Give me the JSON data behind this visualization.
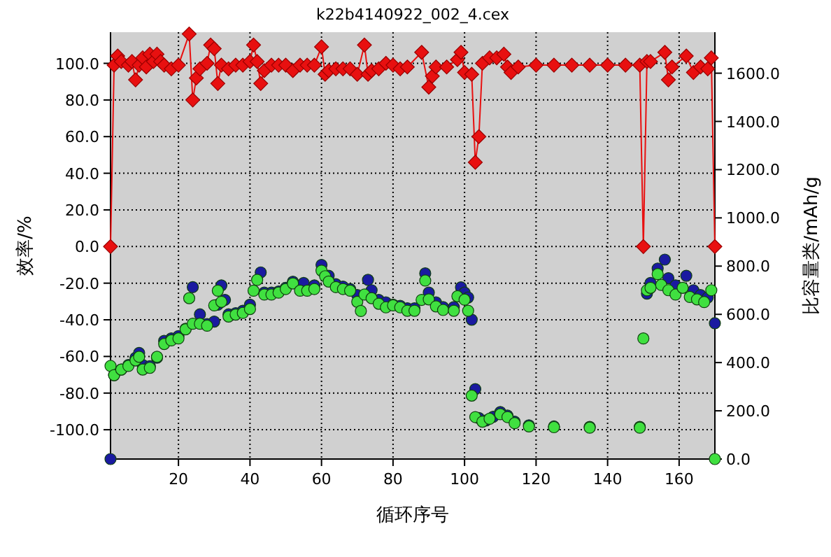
{
  "chart_data": {
    "type": "scatter",
    "title": "k22b4140922_002_4.cex",
    "xlabel": "循环序号",
    "ylabel": "效率/%",
    "y2label": "比容量类/mAh/g",
    "xlim": [
      1,
      170
    ],
    "xticks": [
      20,
      40,
      60,
      80,
      100,
      120,
      140,
      160
    ],
    "ylim": [
      -116,
      117
    ],
    "yticks": [
      {
        "value": -100,
        "label": "-100.0"
      },
      {
        "value": -80,
        "label": "-80.0"
      },
      {
        "value": -60,
        "label": "-60.0"
      },
      {
        "value": -40,
        "label": "-40.0"
      },
      {
        "value": -20,
        "label": "-20.0"
      },
      {
        "value": 0,
        "label": "0.0"
      },
      {
        "value": 20,
        "label": "20.0"
      },
      {
        "value": 40,
        "label": "40.0"
      },
      {
        "value": 60,
        "label": "60.0"
      },
      {
        "value": 80,
        "label": "80.0"
      },
      {
        "value": 100,
        "label": "100.0"
      }
    ],
    "y2lim": [
      0,
      1770
    ],
    "y2ticks": [
      {
        "value": 0,
        "label": "0.0"
      },
      {
        "value": 200,
        "label": "200.0"
      },
      {
        "value": 400,
        "label": "400.0"
      },
      {
        "value": 600,
        "label": "600.0"
      },
      {
        "value": 800,
        "label": "800.0"
      },
      {
        "value": 1000,
        "label": "1000.0"
      },
      {
        "value": 1200,
        "label": "1200.0"
      },
      {
        "value": 1400,
        "label": "1400.0"
      },
      {
        "value": 1600,
        "label": "1600.0"
      }
    ],
    "grid": true,
    "series": [
      {
        "type": "line",
        "marker": "diamond",
        "axis": "y",
        "color": "#e81010",
        "x": [
          1,
          2,
          3,
          4,
          6,
          7,
          8,
          9,
          10,
          11,
          12,
          13,
          14,
          15,
          16,
          18,
          20,
          23,
          24,
          25,
          26,
          28,
          29,
          30,
          31,
          32,
          34,
          36,
          38,
          40,
          41,
          42,
          43,
          44,
          46,
          48,
          50,
          52,
          54,
          56,
          58,
          60,
          61,
          62,
          64,
          66,
          68,
          70,
          72,
          73,
          74,
          76,
          78,
          80,
          82,
          84,
          88,
          90,
          91,
          92,
          95,
          98,
          99,
          100,
          102,
          103,
          104,
          105,
          107,
          109,
          111,
          112,
          113,
          115,
          120,
          125,
          130,
          135,
          140,
          145,
          149,
          150,
          151,
          152,
          156,
          157,
          158,
          162,
          164,
          166,
          168,
          169,
          170
        ],
        "values": [
          0,
          99,
          104,
          101,
          99,
          101,
          91,
          99,
          103,
          98,
          105,
          101,
          105,
          101,
          99,
          97,
          99,
          116,
          80,
          92,
          97,
          100,
          110,
          108,
          89,
          99,
          97,
          99,
          99,
          101,
          110,
          101,
          89,
          96,
          99,
          99,
          99,
          96,
          99,
          99,
          99,
          109,
          94,
          96,
          97,
          97,
          97,
          94,
          110,
          94,
          96,
          97,
          100,
          99,
          97,
          98,
          106,
          87,
          93,
          98,
          98,
          102,
          106,
          95,
          94,
          46,
          60,
          100,
          103,
          103,
          105,
          98,
          95,
          98,
          99,
          99,
          99,
          99,
          99,
          99,
          99,
          0,
          101,
          101,
          106,
          91,
          98,
          104,
          95,
          98,
          97,
          103,
          0
        ]
      },
      {
        "axis": "y2",
        "marker": "circle",
        "color": "#1a1aa0",
        "x": [
          1,
          2,
          4,
          6,
          8,
          9,
          10,
          12,
          14,
          16,
          18,
          20,
          22,
          24,
          26,
          28,
          30,
          31,
          32,
          33,
          34,
          36,
          38,
          40,
          43,
          44,
          46,
          48,
          50,
          52,
          55,
          58,
          60,
          62,
          64,
          66,
          68,
          70,
          73,
          74,
          76,
          78,
          80,
          82,
          84,
          86,
          89,
          90,
          92,
          94,
          97,
          99,
          100,
          101,
          102,
          103,
          104,
          106,
          108,
          110,
          112,
          114,
          118,
          125,
          135,
          149,
          151,
          152,
          154,
          156,
          157,
          159,
          162,
          164,
          166,
          168,
          170
        ],
        "values": [
          0,
          348,
          371,
          390,
          420,
          440,
          390,
          385,
          420,
          490,
          500,
          510,
          540,
          713,
          600,
          560,
          570,
          640,
          720,
          660,
          600,
          605,
          615,
          640,
          774,
          690,
          690,
          695,
          710,
          735,
          730,
          720,
          805,
          760,
          725,
          715,
          705,
          680,
          743,
          700,
          660,
          650,
          640,
          635,
          625,
          625,
          770,
          690,
          650,
          630,
          630,
          712,
          690,
          670,
          578,
          290,
          170,
          160,
          175,
          195,
          180,
          155,
          140,
          135,
          133,
          133,
          686,
          730,
          790,
          827,
          750,
          720,
          760,
          700,
          680,
          670,
          563
        ]
      },
      {
        "axis": "y2",
        "marker": "circle",
        "color": "#40e040",
        "x": [
          1,
          2,
          4,
          6,
          8,
          9,
          10,
          12,
          14,
          16,
          18,
          20,
          22,
          23,
          24,
          26,
          28,
          30,
          31,
          32,
          34,
          36,
          38,
          40,
          41,
          42,
          44,
          46,
          48,
          50,
          52,
          54,
          56,
          58,
          60,
          61,
          62,
          64,
          66,
          68,
          70,
          71,
          72,
          74,
          76,
          78,
          80,
          82,
          84,
          86,
          88,
          89,
          90,
          92,
          94,
          97,
          98,
          100,
          101,
          102,
          103,
          105,
          107,
          110,
          112,
          114,
          118,
          125,
          135,
          149,
          150,
          151,
          152,
          154,
          155,
          157,
          159,
          161,
          163,
          165,
          167,
          169,
          170
        ],
        "values": [
          386,
          348,
          371,
          386,
          409,
          424,
          371,
          378,
          424,
          477,
          492,
          500,
          538,
          667,
          561,
          561,
          553,
          637,
          698,
          652,
          591,
          599,
          606,
          622,
          698,
          743,
          682,
          682,
          690,
          705,
          728,
          698,
          698,
          705,
          781,
          758,
          736,
          713,
          705,
          698,
          652,
          614,
          682,
          667,
          644,
          629,
          637,
          629,
          615,
          615,
          660,
          740,
          662,
          633,
          618,
          615,
          675,
          661,
          615,
          263,
          174,
          155,
          167,
          186,
          174,
          149,
          135,
          132,
          130,
          130,
          500,
          700,
          710,
          767,
          722,
          700,
          682,
          710,
          672,
          662,
          651,
          700,
          0
        ]
      }
    ]
  }
}
